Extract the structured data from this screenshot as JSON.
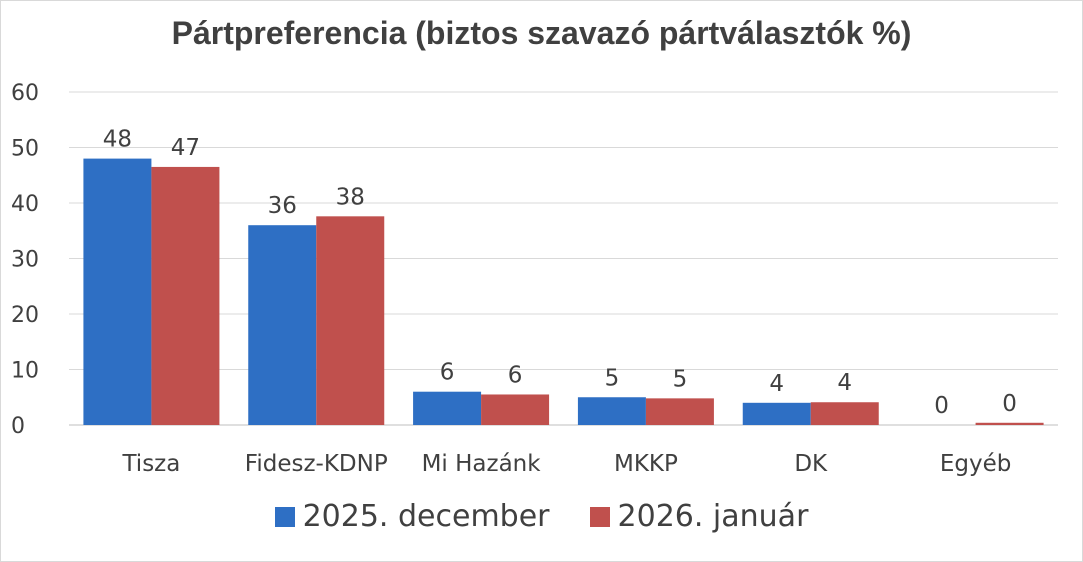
{
  "chart_data": {
    "type": "bar",
    "title": "Pártpreferencia (biztos szavazó pártválasztók %)",
    "categories": [
      "Tisza",
      "Fidesz-KDNP",
      "Mi Hazánk",
      "MKKP",
      "DK",
      "Egyéb"
    ],
    "series": [
      {
        "name": "2025. december",
        "values": [
          48,
          36,
          6,
          5,
          4,
          0
        ],
        "color": "#2e6fc4"
      },
      {
        "name": "2026. január",
        "values": [
          46.5,
          37.6,
          5.5,
          4.8,
          4.1,
          0.4
        ],
        "labels": [
          "47",
          "38",
          "6",
          "5",
          "4",
          "0"
        ],
        "color": "#c0504d"
      }
    ],
    "yticks": [
      "0",
      "10",
      "20",
      "30",
      "40",
      "50",
      "60"
    ],
    "ylim": [
      0,
      60
    ],
    "grid": true,
    "legend_position": "bottom"
  }
}
